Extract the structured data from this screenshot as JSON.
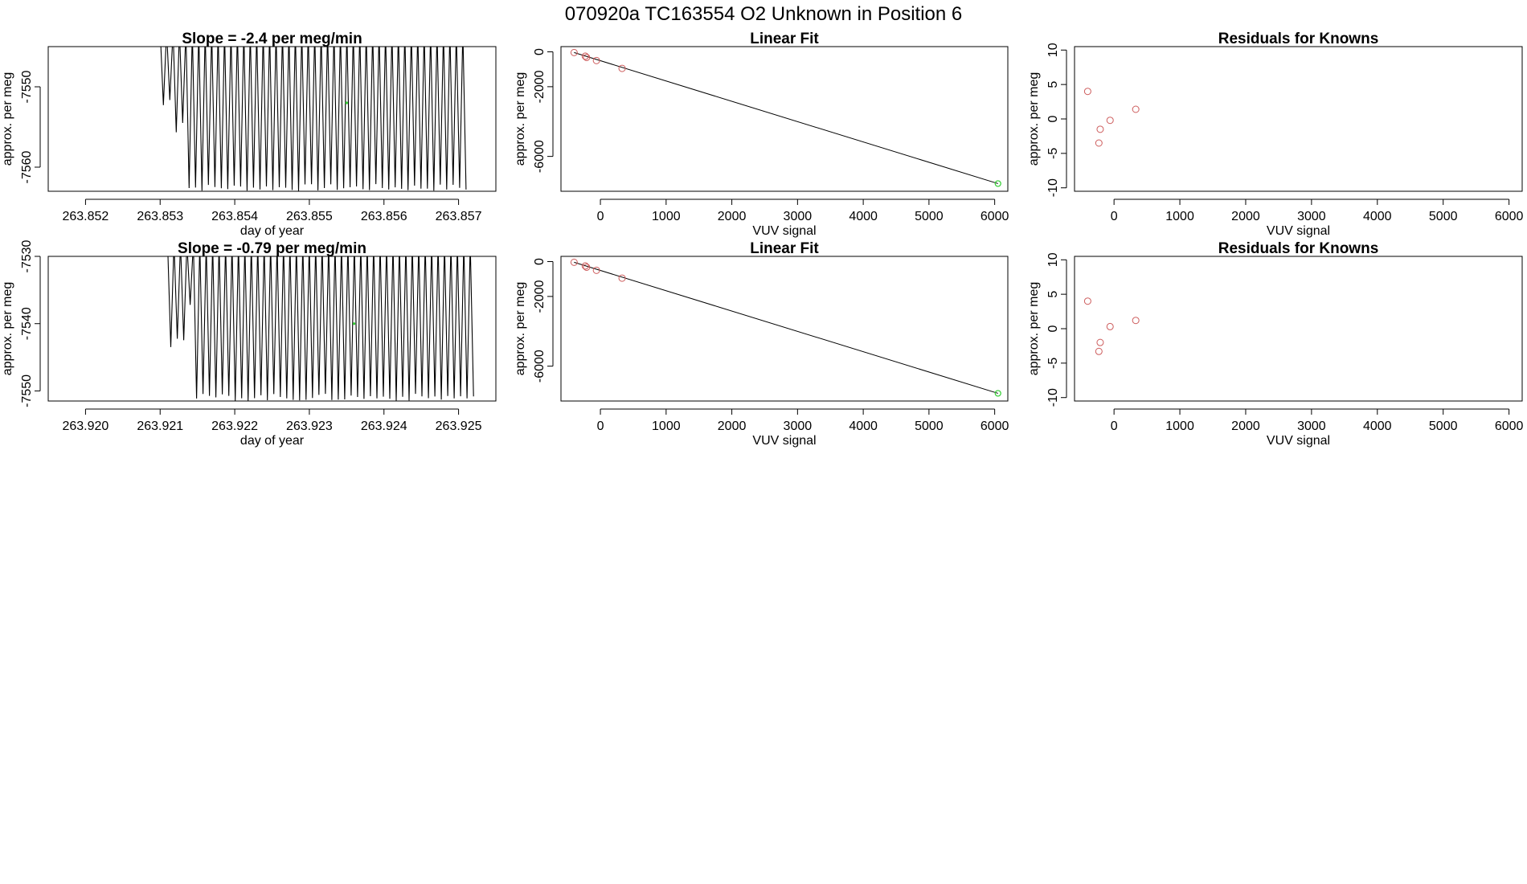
{
  "header": {
    "title": "070920a      TC163554   O2 Unknown in Position  6"
  },
  "colors": {
    "known_point": "#cd5c5c",
    "unknown_point": "#32cd32",
    "frame": "#000000",
    "trace": "#000000"
  },
  "chart_data": [
    {
      "type": "line",
      "title": "Slope =  -2.4  per meg/min",
      "xlabel": "day of year",
      "ylabel": "approx. per meg",
      "xlim": [
        263.8515,
        263.8575
      ],
      "ylim": [
        -7563,
        -7545
      ],
      "xticks": [
        "263.852",
        "263.853",
        "263.854",
        "263.855",
        "263.856",
        "263.857"
      ],
      "yticks": [
        "-7550",
        "-7560"
      ],
      "trace_range": [
        263.853,
        263.8571
      ],
      "highlight_point": {
        "x": 263.8555,
        "y": -7552
      }
    },
    {
      "type": "scatter",
      "title": "Linear Fit",
      "xlabel": "VUV signal",
      "ylabel": "approx. per meg",
      "xlim": [
        -600,
        6200
      ],
      "ylim": [
        -8000,
        300
      ],
      "xticks": [
        "0",
        "1000",
        "2000",
        "3000",
        "4000",
        "5000",
        "6000"
      ],
      "yticks": [
        "0",
        "-2000",
        "-6000"
      ],
      "fit_line": [
        [
          -400,
          -40
        ],
        [
          6050,
          -7560
        ]
      ],
      "knowns": {
        "x": [
          -400,
          -230,
          -210,
          -60,
          330
        ],
        "y": [
          -40,
          -250,
          -320,
          -500,
          -950
        ]
      },
      "unknown": {
        "x": 6050,
        "y": -7560
      }
    },
    {
      "type": "scatter",
      "title": "Residuals for Knowns",
      "xlabel": "VUV signal",
      "ylabel": "approx. per meg",
      "xlim": [
        -600,
        6200
      ],
      "ylim": [
        -10.5,
        10.5
      ],
      "xticks": [
        "0",
        "1000",
        "2000",
        "3000",
        "4000",
        "5000",
        "6000"
      ],
      "yticks": [
        "10",
        "5",
        "0",
        "-5",
        "-10"
      ],
      "knowns": {
        "x": [
          -400,
          -210,
          -230,
          -60,
          330
        ],
        "y": [
          4,
          -1.5,
          -3.5,
          -0.2,
          1.4
        ]
      }
    },
    {
      "type": "line",
      "title": "Slope =  -0.79  per meg/min",
      "xlabel": "day of year",
      "ylabel": "approx. per meg",
      "xlim": [
        263.9195,
        263.9255
      ],
      "ylim": [
        -7551.5,
        -7530
      ],
      "xticks": [
        "263.920",
        "263.921",
        "263.922",
        "263.923",
        "263.924",
        "263.925"
      ],
      "yticks": [
        "-7530",
        "-7540",
        "-7550"
      ],
      "trace_range": [
        263.9211,
        263.9252
      ],
      "highlight_point": {
        "x": 263.9236,
        "y": -7540
      }
    },
    {
      "type": "scatter",
      "title": "Linear Fit",
      "xlabel": "VUV signal",
      "ylabel": "approx. per meg",
      "xlim": [
        -600,
        6200
      ],
      "ylim": [
        -8000,
        300
      ],
      "xticks": [
        "0",
        "1000",
        "2000",
        "3000",
        "4000",
        "5000",
        "6000"
      ],
      "yticks": [
        "0",
        "-2000",
        "-6000"
      ],
      "fit_line": [
        [
          -400,
          -40
        ],
        [
          6050,
          -7560
        ]
      ],
      "knowns": {
        "x": [
          -400,
          -230,
          -210,
          -60,
          330
        ],
        "y": [
          -40,
          -250,
          -320,
          -500,
          -950
        ]
      },
      "unknown": {
        "x": 6050,
        "y": -7560
      }
    },
    {
      "type": "scatter",
      "title": "Residuals for Knowns",
      "xlabel": "VUV signal",
      "ylabel": "approx. per meg",
      "xlim": [
        -600,
        6200
      ],
      "ylim": [
        -10.5,
        10.5
      ],
      "xticks": [
        "0",
        "1000",
        "2000",
        "3000",
        "4000",
        "5000",
        "6000"
      ],
      "yticks": [
        "10",
        "5",
        "0",
        "-5",
        "-10"
      ],
      "knowns": {
        "x": [
          -400,
          -210,
          -230,
          -60,
          330
        ],
        "y": [
          4,
          -2,
          -3.3,
          0.3,
          1.2
        ]
      }
    }
  ]
}
